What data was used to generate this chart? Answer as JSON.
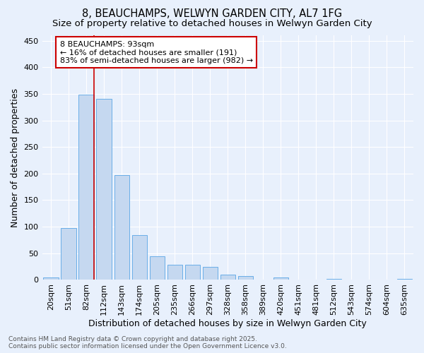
{
  "title1": "8, BEAUCHAMPS, WELWYN GARDEN CITY, AL7 1FG",
  "title2": "Size of property relative to detached houses in Welwyn Garden City",
  "xlabel": "Distribution of detached houses by size in Welwyn Garden City",
  "ylabel": "Number of detached properties",
  "categories": [
    "20sqm",
    "51sqm",
    "82sqm",
    "112sqm",
    "143sqm",
    "174sqm",
    "205sqm",
    "235sqm",
    "266sqm",
    "297sqm",
    "328sqm",
    "358sqm",
    "389sqm",
    "420sqm",
    "451sqm",
    "481sqm",
    "512sqm",
    "543sqm",
    "574sqm",
    "604sqm",
    "635sqm"
  ],
  "values": [
    5,
    98,
    349,
    340,
    197,
    84,
    45,
    28,
    28,
    24,
    10,
    7,
    1,
    5,
    1,
    0,
    2,
    0,
    0,
    0,
    2
  ],
  "bar_color": "#c5d8f0",
  "bar_edge_color": "#6aaee8",
  "vline_x_index": 2,
  "vline_color": "#cc0000",
  "annotation_text": "8 BEAUCHAMPS: 93sqm\n← 16% of detached houses are smaller (191)\n83% of semi-detached houses are larger (982) →",
  "annotation_box_color": "#ffffff",
  "annotation_box_edge": "#cc0000",
  "ylim": [
    0,
    460
  ],
  "yticks": [
    0,
    50,
    100,
    150,
    200,
    250,
    300,
    350,
    400,
    450
  ],
  "background_color": "#e8f0fc",
  "grid_color": "#ffffff",
  "footer": "Contains HM Land Registry data © Crown copyright and database right 2025.\nContains public sector information licensed under the Open Government Licence v3.0.",
  "title1_fontsize": 10.5,
  "title2_fontsize": 9.5,
  "xlabel_fontsize": 9,
  "ylabel_fontsize": 9,
  "tick_fontsize": 8,
  "annotation_fontsize": 8,
  "footer_fontsize": 6.5
}
